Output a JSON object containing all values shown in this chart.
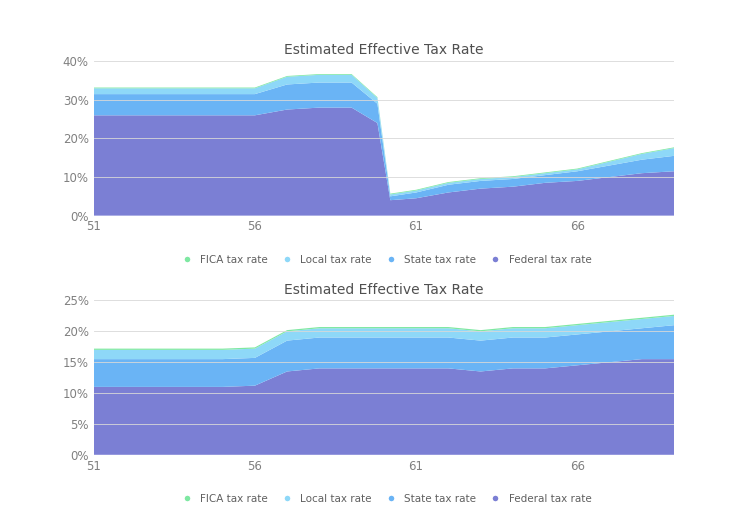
{
  "title": "Estimated Effective Tax Rate",
  "x": [
    51,
    52,
    53,
    54,
    55,
    56,
    57,
    58,
    59,
    59.8,
    60.2,
    61,
    62,
    63,
    64,
    65,
    66,
    67,
    68,
    69
  ],
  "chart1": {
    "federal": [
      26.0,
      26.0,
      26.0,
      26.0,
      26.0,
      26.0,
      27.5,
      28.0,
      28.0,
      24.0,
      4.0,
      4.5,
      6.0,
      7.0,
      7.5,
      8.5,
      9.0,
      10.0,
      11.0,
      11.5
    ],
    "state": [
      5.5,
      5.5,
      5.5,
      5.5,
      5.5,
      5.5,
      6.5,
      6.5,
      6.5,
      5.0,
      1.0,
      1.5,
      2.0,
      2.0,
      2.0,
      2.0,
      2.5,
      3.0,
      3.5,
      4.0
    ],
    "local": [
      1.5,
      1.5,
      1.5,
      1.5,
      1.5,
      1.5,
      2.0,
      2.0,
      2.0,
      1.5,
      0.5,
      0.5,
      0.5,
      0.5,
      0.5,
      0.5,
      0.5,
      1.0,
      1.5,
      2.0
    ],
    "fica": [
      0.2,
      0.2,
      0.2,
      0.2,
      0.2,
      0.2,
      0.2,
      0.2,
      0.2,
      0.2,
      0.2,
      0.2,
      0.2,
      0.2,
      0.2,
      0.2,
      0.2,
      0.2,
      0.2,
      0.2
    ]
  },
  "chart2": {
    "federal": [
      11.0,
      11.0,
      11.0,
      11.0,
      11.0,
      11.2,
      13.5,
      14.0,
      14.0,
      14.0,
      14.0,
      14.0,
      14.0,
      13.5,
      14.0,
      14.0,
      14.5,
      15.0,
      15.5,
      15.5
    ],
    "state": [
      4.5,
      4.5,
      4.5,
      4.5,
      4.5,
      4.5,
      5.0,
      5.0,
      5.0,
      5.0,
      5.0,
      5.0,
      5.0,
      5.0,
      5.0,
      5.0,
      5.0,
      5.0,
      5.0,
      5.5
    ],
    "local": [
      1.5,
      1.5,
      1.5,
      1.5,
      1.5,
      1.5,
      1.5,
      1.5,
      1.5,
      1.5,
      1.5,
      1.5,
      1.5,
      1.5,
      1.5,
      1.5,
      1.5,
      1.5,
      1.5,
      1.5
    ],
    "fica": [
      0.2,
      0.2,
      0.2,
      0.2,
      0.2,
      0.2,
      0.2,
      0.2,
      0.2,
      0.2,
      0.2,
      0.2,
      0.2,
      0.2,
      0.2,
      0.2,
      0.2,
      0.2,
      0.2,
      0.2
    ]
  },
  "colors": {
    "federal": "#7b7fd4",
    "state": "#6ab4f5",
    "local": "#8ed8f8",
    "fica": "#7ee8a2"
  },
  "ylim1": [
    0,
    40
  ],
  "ylim2": [
    0,
    25
  ],
  "yticks1": [
    0,
    10,
    20,
    30,
    40
  ],
  "yticks2": [
    0,
    5,
    10,
    15,
    20,
    25
  ],
  "xticks": [
    51,
    56,
    61,
    66
  ],
  "legend_labels": [
    "FICA tax rate",
    "Local tax rate",
    "State tax rate",
    "Federal tax rate"
  ],
  "legend_colors": [
    "#7ee8a2",
    "#8ed8f8",
    "#6ab4f5",
    "#7b7fd4"
  ],
  "bg_color": "#ffffff",
  "grid_color": "#d8d8d8",
  "title_fontsize": 10,
  "axis_fontsize": 8.5,
  "legend_fontsize": 7.5
}
